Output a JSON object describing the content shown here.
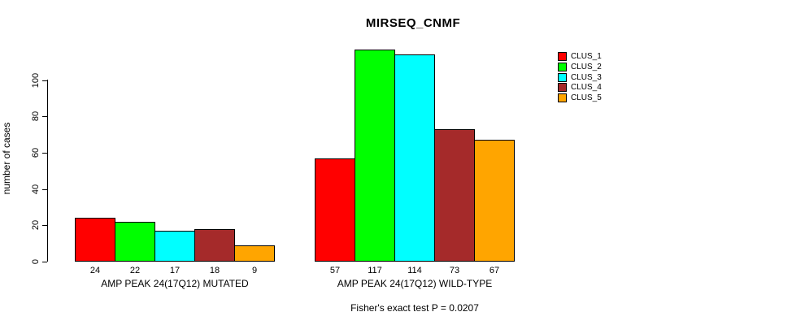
{
  "chart_data": {
    "type": "bar",
    "title": "MIRSEQ_CNMF",
    "ylabel": "number of cases",
    "xlabel": "",
    "ylim": [
      0,
      117
    ],
    "yticks": [
      0,
      20,
      40,
      60,
      80,
      100
    ],
    "grid": false,
    "legend_position": "right",
    "series": [
      {
        "name": "CLUS_1",
        "color": "#FF0000"
      },
      {
        "name": "CLUS_2",
        "color": "#00FF00"
      },
      {
        "name": "CLUS_3",
        "color": "#00FFFF"
      },
      {
        "name": "CLUS_4",
        "color": "#A52A2A"
      },
      {
        "name": "CLUS_5",
        "color": "#FFA500"
      }
    ],
    "groups": [
      {
        "category": "AMP PEAK 24(17Q12) MUTATED",
        "values": [
          24,
          22,
          17,
          18,
          9
        ]
      },
      {
        "category": "AMP PEAK 24(17Q12) WILD-TYPE",
        "values": [
          57,
          117,
          114,
          73,
          67
        ]
      }
    ],
    "annotation": "Fisher's exact test P = 0.0207"
  }
}
